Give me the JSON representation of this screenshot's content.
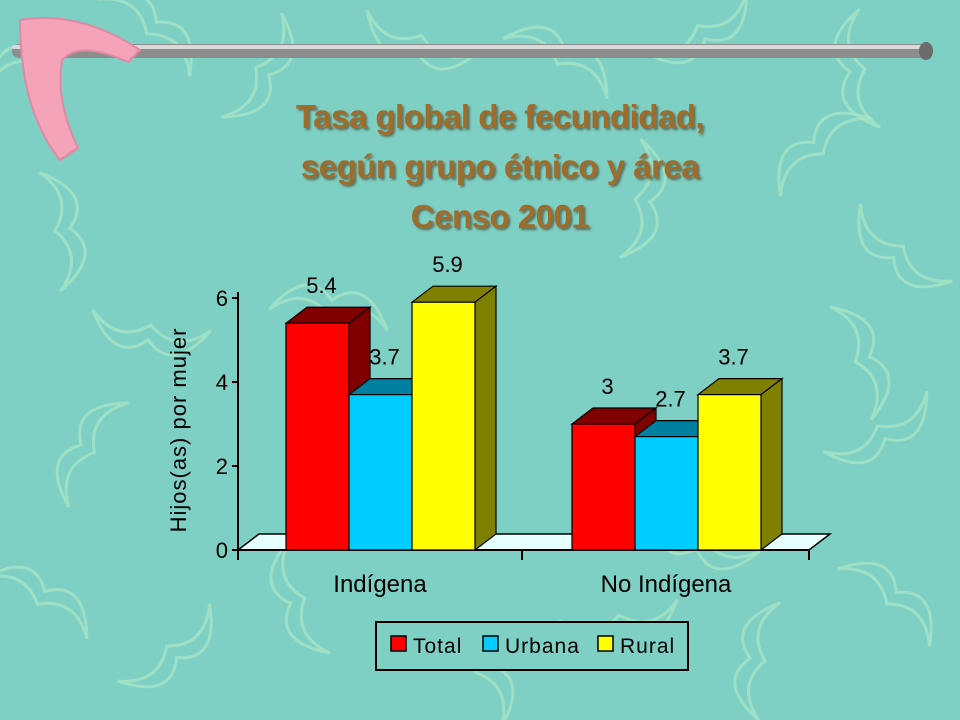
{
  "slide": {
    "title_lines": [
      "Tasa global de fecundidad,",
      "según grupo étnico y área",
      "Censo 2001"
    ]
  },
  "chart_data": {
    "type": "bar",
    "categories": [
      "Indígena",
      "No Indígena"
    ],
    "series": [
      {
        "name": "Total",
        "values": [
          5.4,
          3
        ],
        "labels": [
          "5.4",
          "3"
        ],
        "color": "#ff0000",
        "side": "#800000"
      },
      {
        "name": "Urbana",
        "values": [
          3.7,
          2.7
        ],
        "labels": [
          "3.7",
          "2.7"
        ],
        "color": "#00ccff",
        "side": "#0080a0"
      },
      {
        "name": "Rural",
        "values": [
          5.9,
          3.7
        ],
        "labels": [
          "5.9",
          "3.7"
        ],
        "color": "#ffff00",
        "side": "#808000"
      }
    ],
    "ylabel": "Hijos(as) por mujer",
    "yticks": [
      "0",
      "2",
      "4",
      "6"
    ],
    "ylim": [
      0,
      6
    ],
    "grid": false,
    "legend_position": "bottom",
    "colors": {
      "background": "#7ecfc4",
      "title": "#a06c2c",
      "floor": "#e6ffff"
    }
  }
}
